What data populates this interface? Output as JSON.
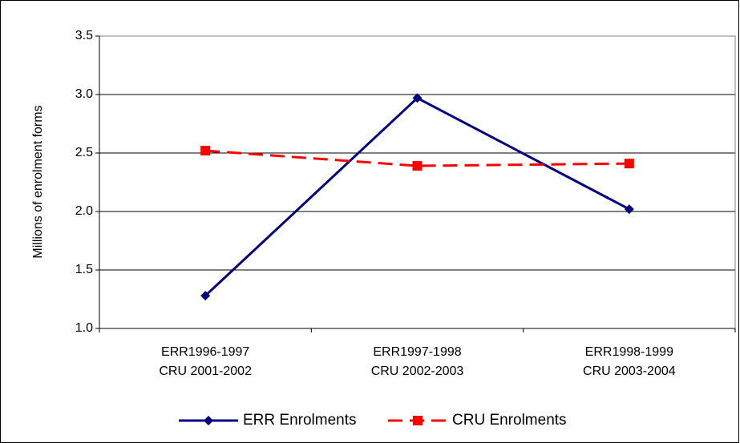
{
  "chart_data": {
    "type": "line",
    "y_label": "Millions of enrolment forms",
    "categories": [
      [
        "ERR1996-1997",
        "CRU 2001-2002"
      ],
      [
        "ERR1997-1998",
        "CRU 2002-2003"
      ],
      [
        "ERR1998-1999",
        "CRU 2003-2004"
      ]
    ],
    "series": [
      {
        "name": "ERR Enrolments",
        "color": "#000080",
        "marker": "diamond",
        "dashed": false,
        "values": [
          1.28,
          2.97,
          2.02
        ]
      },
      {
        "name": "CRU Enrolments",
        "color": "#ff0000",
        "marker": "square",
        "dashed": true,
        "values": [
          2.52,
          2.39,
          2.41
        ]
      }
    ],
    "ylim": [
      1,
      3.5
    ],
    "yticks": [
      {
        "value": 1,
        "label": "1.0"
      },
      1.5,
      {
        "value": 2,
        "label": "2.0"
      },
      2.5,
      {
        "value": 3,
        "label": "3.0"
      },
      3.5
    ],
    "grid": true,
    "legend": "bottom"
  }
}
